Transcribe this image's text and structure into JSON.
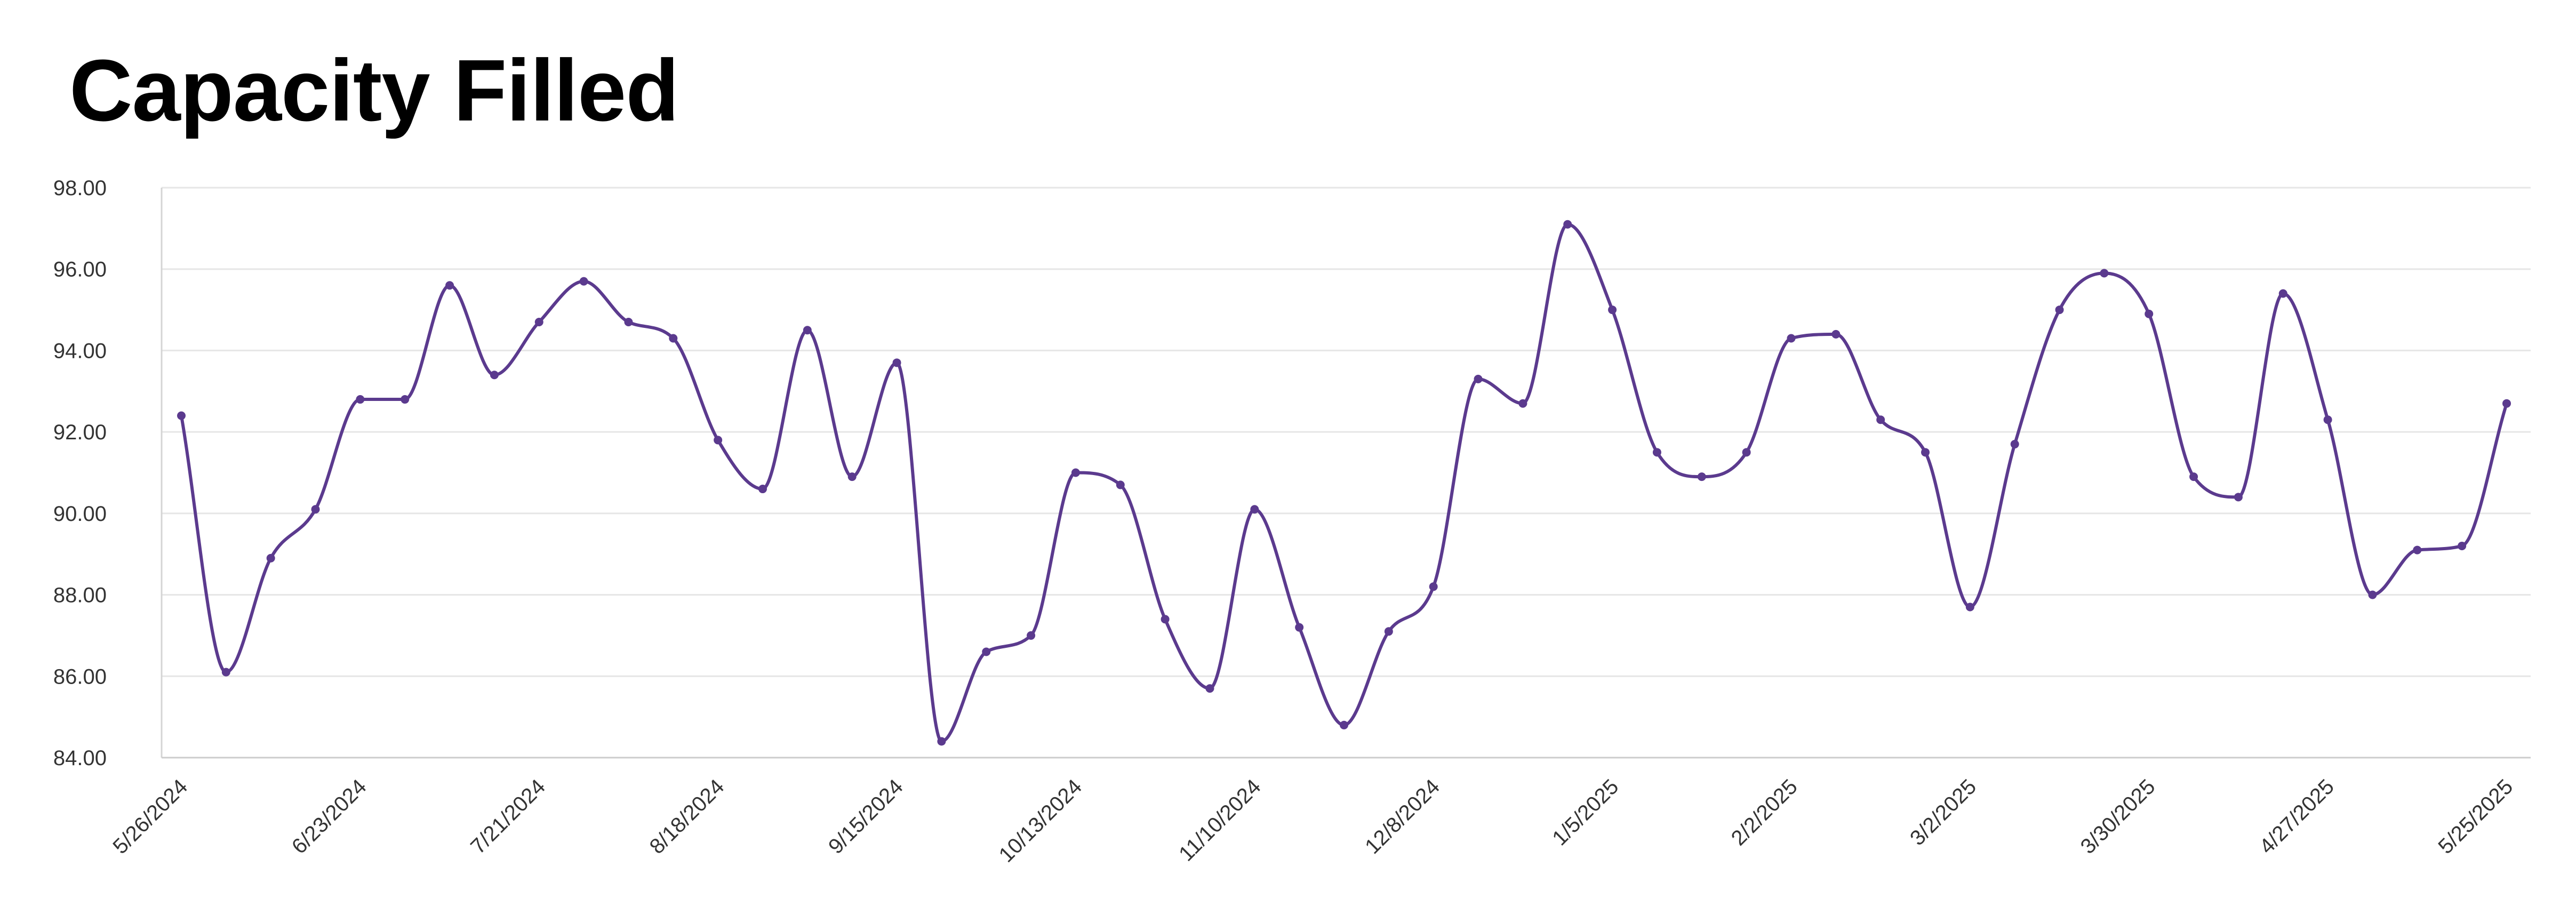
{
  "chart_data": {
    "type": "line",
    "title": "Capacity Filled",
    "xlabel": "",
    "ylabel": "",
    "ylim": [
      84,
      98
    ],
    "yticks": [
      "84.00",
      "86.00",
      "88.00",
      "90.00",
      "92.00",
      "94.00",
      "96.00",
      "98.00"
    ],
    "x_tick_labels": [
      "5/26/2024",
      "6/23/2024",
      "7/21/2024",
      "8/18/2024",
      "9/15/2024",
      "10/13/2024",
      "11/10/2024",
      "12/8/2024",
      "1/5/2025",
      "2/2/2025",
      "3/2/2025",
      "3/30/2025",
      "4/27/2025",
      "5/25/2025"
    ],
    "grid": true,
    "legend": "none",
    "line_color": "#5b3a8e",
    "x": [
      "5/26/2024",
      "6/2/2024",
      "6/9/2024",
      "6/16/2024",
      "6/23/2024",
      "6/30/2024",
      "7/7/2024",
      "7/14/2024",
      "7/21/2024",
      "7/28/2024",
      "8/4/2024",
      "8/11/2024",
      "8/18/2024",
      "8/25/2024",
      "9/1/2024",
      "9/8/2024",
      "9/15/2024",
      "9/22/2024",
      "9/29/2024",
      "10/6/2024",
      "10/13/2024",
      "10/20/2024",
      "10/27/2024",
      "11/3/2024",
      "11/10/2024",
      "11/17/2024",
      "11/24/2024",
      "12/1/2024",
      "12/8/2024",
      "12/15/2024",
      "12/22/2024",
      "12/29/2024",
      "1/5/2025",
      "1/12/2025",
      "1/19/2025",
      "1/26/2025",
      "2/2/2025",
      "2/9/2025",
      "2/16/2025",
      "2/23/2025",
      "3/2/2025",
      "3/9/2025",
      "3/16/2025",
      "3/23/2025",
      "3/30/2025",
      "4/6/2025",
      "4/13/2025",
      "4/20/2025",
      "4/27/2025",
      "5/4/2025",
      "5/11/2025",
      "5/18/2025",
      "5/25/2025"
    ],
    "series": [
      {
        "values": [
          92.4,
          86.1,
          88.9,
          90.1,
          92.8,
          92.8,
          95.6,
          93.4,
          94.7,
          95.7,
          94.7,
          94.3,
          91.8,
          90.6,
          94.5,
          90.9,
          93.7,
          84.4,
          86.6,
          87.0,
          91.0,
          90.7,
          87.4,
          85.7,
          90.1,
          87.2,
          84.8,
          87.1,
          88.2,
          93.3,
          92.7,
          97.1,
          95.0,
          91.5,
          90.9,
          91.5,
          94.3,
          94.4,
          92.3,
          91.5,
          87.7,
          91.7,
          95.0,
          95.9,
          94.9,
          90.9,
          90.4,
          95.4,
          92.3,
          88.0,
          89.1,
          89.2,
          92.7
        ]
      }
    ]
  }
}
